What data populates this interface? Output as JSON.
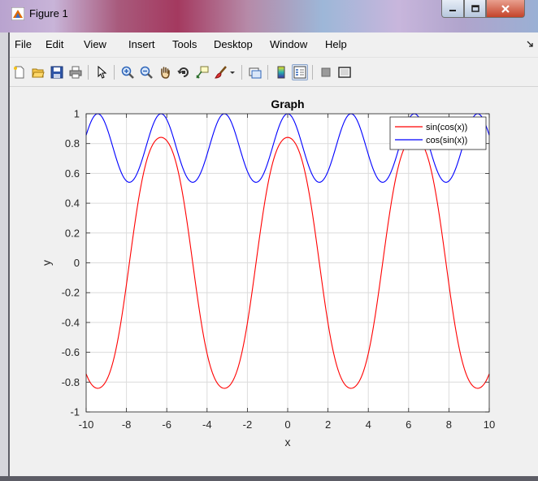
{
  "window": {
    "title": "Figure 1"
  },
  "menu": {
    "items": [
      "File",
      "Edit",
      "View",
      "Insert",
      "Tools",
      "Desktop",
      "Window",
      "Help"
    ]
  },
  "toolbar": {
    "icons": [
      "new-figure-icon",
      "open-file-icon",
      "save-icon",
      "print-icon",
      "pointer-icon",
      "zoom-in-icon",
      "zoom-out-icon",
      "pan-icon",
      "rotate-3d-icon",
      "data-cursor-icon",
      "brush-icon",
      "brush-dropdown-icon",
      "link-plot-icon",
      "colorbar-icon",
      "legend-icon",
      "hide-plot-tools-icon",
      "show-plot-tools-icon"
    ]
  },
  "chart_data": {
    "type": "line",
    "title": "Graph",
    "xlabel": "x",
    "ylabel": "y",
    "xlim": [
      -10,
      10
    ],
    "ylim": [
      -1,
      1
    ],
    "xticks": [
      "-10",
      "-8",
      "-6",
      "-4",
      "-2",
      "0",
      "2",
      "4",
      "6",
      "8",
      "10"
    ],
    "yticks": [
      "-1",
      "-0.8",
      "-0.6",
      "-0.4",
      "-0.2",
      "0",
      "0.2",
      "0.4",
      "0.6",
      "0.8",
      "1"
    ],
    "grid": true,
    "legend_position": "top-right",
    "series": [
      {
        "name": "sin(cos(x))",
        "color": "#ff0000",
        "function": "sin(cos(x))"
      },
      {
        "name": "cos(sin(x))",
        "color": "#0000ff",
        "function": "cos(sin(x))"
      }
    ]
  }
}
